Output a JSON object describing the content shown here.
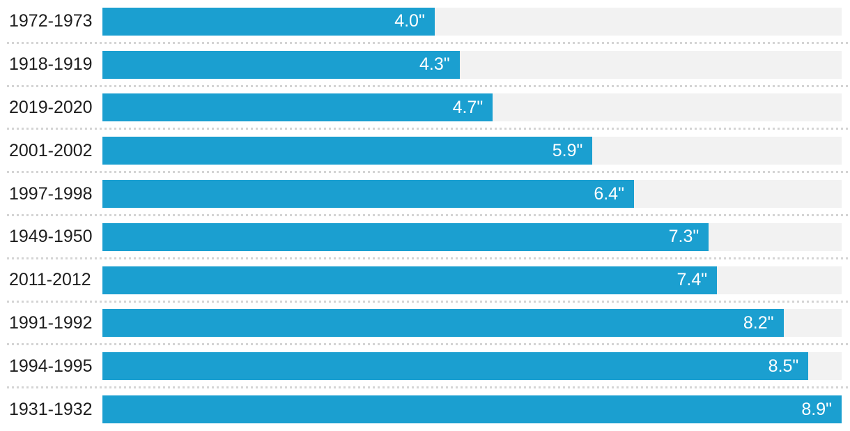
{
  "chart_data": {
    "type": "bar",
    "orientation": "horizontal",
    "categories": [
      "1972-1973",
      "1918-1919",
      "2019-2020",
      "2001-2002",
      "1997-1998",
      "1949-1950",
      "2011-2012",
      "1991-1992",
      "1994-1995",
      "1931-1932"
    ],
    "values": [
      4.0,
      4.3,
      4.7,
      5.9,
      6.4,
      7.3,
      7.4,
      8.2,
      8.5,
      8.9
    ],
    "value_labels": [
      "4.0\"",
      "4.3\"",
      "4.7\"",
      "5.9\"",
      "6.4\"",
      "7.3\"",
      "7.4\"",
      "8.2\"",
      "8.5\"",
      "8.9\""
    ],
    "xlim": [
      0,
      8.9
    ],
    "grid": "off",
    "legend": "none",
    "colors": {
      "bar": "#1b9fd0",
      "track": "#f2f2f2",
      "category_label": "#1e1e1e",
      "value_label": "#ffffff",
      "separator": "#d4d4d4"
    }
  },
  "rows": [
    {
      "label": "1972-1973",
      "display": "4.0\""
    },
    {
      "label": "1918-1919",
      "display": "4.3\""
    },
    {
      "label": "2019-2020",
      "display": "4.7\""
    },
    {
      "label": "2001-2002",
      "display": "5.9\""
    },
    {
      "label": "1997-1998",
      "display": "6.4\""
    },
    {
      "label": "1949-1950",
      "display": "7.3\""
    },
    {
      "label": "2011-2012",
      "display": "7.4\""
    },
    {
      "label": "1991-1992",
      "display": "8.2\""
    },
    {
      "label": "1994-1995",
      "display": "8.5\""
    },
    {
      "label": "1931-1932",
      "display": "8.9\""
    }
  ]
}
